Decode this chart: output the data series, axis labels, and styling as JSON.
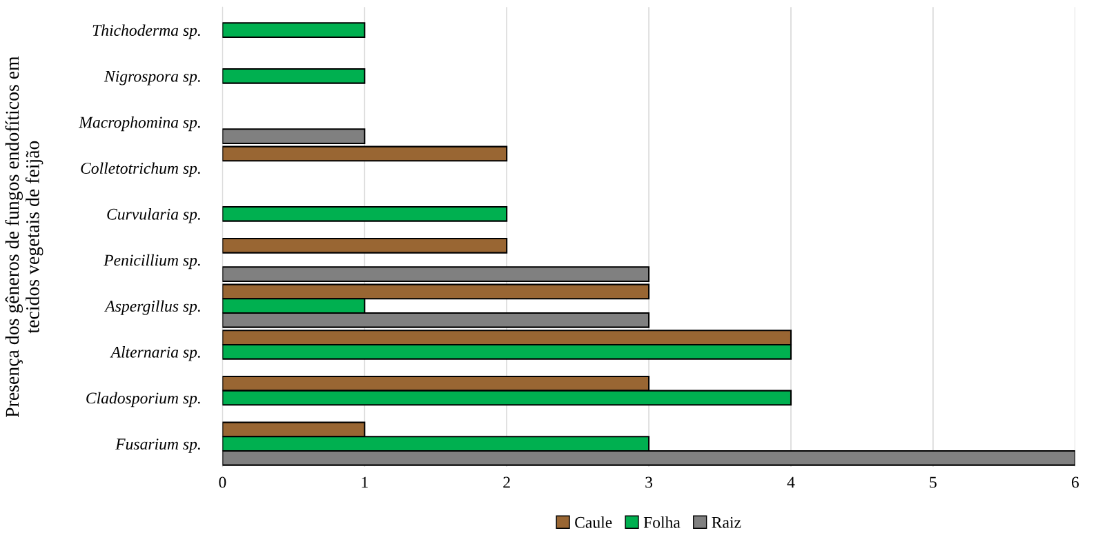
{
  "chart_data": {
    "type": "bar",
    "orientation": "horizontal",
    "ylabel": "Presença dos gêneros de fungos endofíticos em\ntecidos vegetais de feijão",
    "categories": [
      "Thichoderma sp.",
      "Nigrospora sp.",
      "Macrophomina sp.",
      "Colletotrichum sp.",
      "Curvularia sp.",
      "Penicillium sp.",
      "Aspergillus sp.",
      "Alternaria sp.",
      "Cladosporium sp.",
      "Fusarium sp."
    ],
    "series": [
      {
        "name": "Caule",
        "color": "#996633",
        "values": [
          null,
          null,
          null,
          2,
          null,
          2,
          3,
          4,
          3,
          1
        ]
      },
      {
        "name": "Folha",
        "color": "#00b050",
        "values": [
          1,
          1,
          null,
          null,
          2,
          null,
          1,
          4,
          4,
          3
        ]
      },
      {
        "name": "Raiz",
        "color": "#808080",
        "values": [
          null,
          null,
          1,
          null,
          null,
          3,
          3,
          null,
          null,
          6
        ]
      }
    ],
    "xlim": [
      0,
      6
    ],
    "xticks": [
      0,
      1,
      2,
      3,
      4,
      5,
      6
    ],
    "grid": "x",
    "legend": "bottom"
  }
}
